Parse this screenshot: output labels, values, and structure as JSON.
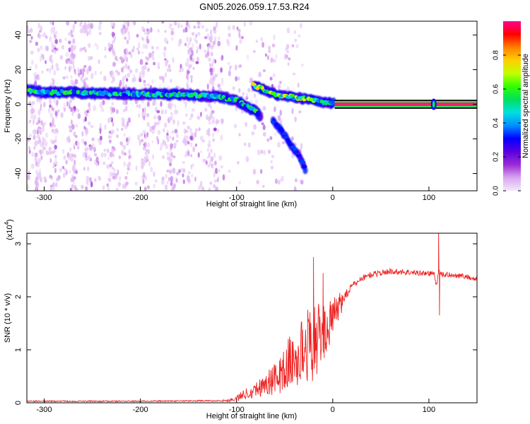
{
  "title": "GN05.2026.059.17.53.R24",
  "chart_data": [
    {
      "type": "heatmap",
      "xlabel": "Height of straight line (km)",
      "ylabel": "Frequency (Hz)",
      "xlim": [
        -318,
        150
      ],
      "ylim": [
        -50,
        48
      ],
      "xticks": [
        -300,
        -200,
        -100,
        0,
        100
      ],
      "yticks": [
        -40,
        -20,
        0,
        20,
        40
      ],
      "grid": false,
      "colorbar": {
        "label": "Normalized spectral amplitude",
        "ticks": [
          0.0,
          0.2,
          0.4,
          0.6,
          0.8
        ],
        "range": [
          0,
          1
        ],
        "colormap": [
          "#f4eafc",
          "#d9a6f0",
          "#9a2bd6",
          "#5a00e0",
          "#0000ff",
          "#0090ff",
          "#00e0e0",
          "#00e060",
          "#30ff00",
          "#c0ff00",
          "#ffd000",
          "#ff8000",
          "#ff0000",
          "#ff0090"
        ]
      },
      "main_track": [
        {
          "x": -318,
          "y": 8
        },
        {
          "x": -300,
          "y": 7
        },
        {
          "x": -250,
          "y": 6.5
        },
        {
          "x": -200,
          "y": 6
        },
        {
          "x": -150,
          "y": 5.5
        },
        {
          "x": -120,
          "y": 4.5
        },
        {
          "x": -100,
          "y": 2.5
        },
        {
          "x": -90,
          "y": -1
        },
        {
          "x": -80,
          "y": -4
        },
        {
          "x": -75,
          "y": -7
        }
      ],
      "upper_branch": [
        {
          "x": -82,
          "y": 11
        },
        {
          "x": -70,
          "y": 8
        },
        {
          "x": -55,
          "y": 5
        },
        {
          "x": -40,
          "y": 4
        },
        {
          "x": -25,
          "y": 3
        },
        {
          "x": -10,
          "y": 1
        },
        {
          "x": 2,
          "y": 0.5
        }
      ],
      "lower_branch": [
        {
          "x": -62,
          "y": -10
        },
        {
          "x": -55,
          "y": -14
        },
        {
          "x": -45,
          "y": -22
        },
        {
          "x": -35,
          "y": -30
        },
        {
          "x": -28,
          "y": -38
        }
      ],
      "carrier": {
        "x_start": 2,
        "x_end": 150,
        "y": 0
      },
      "spike": {
        "x": 105,
        "y": 0
      }
    },
    {
      "type": "line",
      "xlabel": "Height of straight line (km)",
      "ylabel": "SNR (10 * v/v)",
      "unit_label": "(x10",
      "unit_exp": "4",
      "xlim": [
        -318,
        150
      ],
      "ylim": [
        0,
        3.2
      ],
      "xticks": [
        -300,
        -200,
        -100,
        0,
        100
      ],
      "yticks": [
        0,
        1,
        2,
        3
      ],
      "color": "#ee2222",
      "series": [
        {
          "x": [
            -318,
            -200,
            -110,
            -100,
            -90,
            -80,
            -70,
            -60,
            -50,
            -45,
            -40,
            -30,
            -20,
            -10,
            0,
            10,
            20,
            30,
            40,
            50,
            60,
            70,
            80,
            90,
            100,
            105,
            108,
            110,
            112,
            120,
            130,
            140,
            150
          ],
          "values": [
            0.03,
            0.03,
            0.04,
            0.08,
            0.18,
            0.25,
            0.35,
            0.45,
            0.6,
            0.8,
            0.7,
            1.05,
            1.15,
            1.3,
            1.6,
            1.95,
            2.2,
            2.35,
            2.42,
            2.45,
            2.48,
            2.47,
            2.46,
            2.45,
            2.44,
            2.45,
            2.2,
            2.5,
            2.42,
            2.42,
            2.4,
            2.38,
            2.32
          ]
        }
      ],
      "noise_amplitude": [
        {
          "x": -110,
          "a": 0.02
        },
        {
          "x": -80,
          "a": 0.15
        },
        {
          "x": -60,
          "a": 0.3
        },
        {
          "x": -40,
          "a": 0.55
        },
        {
          "x": -20,
          "a": 0.75
        },
        {
          "x": 0,
          "a": 0.35
        },
        {
          "x": 20,
          "a": 0.1
        },
        {
          "x": 150,
          "a": 0.08
        }
      ],
      "spikes": [
        {
          "x": -20,
          "value": 2.75
        },
        {
          "x": -10,
          "value": 2.45
        },
        {
          "x": 110,
          "value": 3.3
        },
        {
          "x": 111,
          "value": 1.65
        }
      ]
    }
  ]
}
